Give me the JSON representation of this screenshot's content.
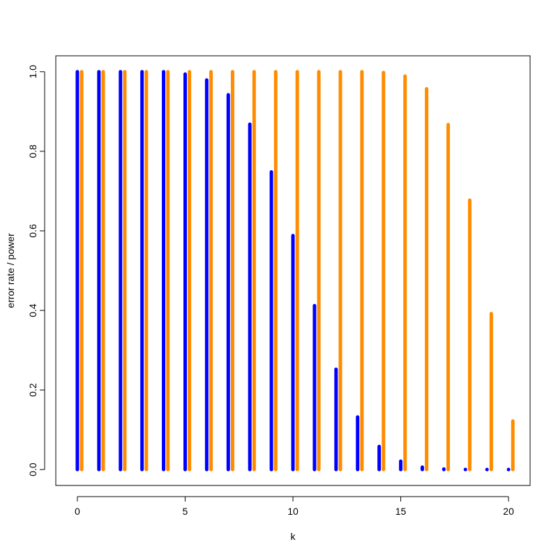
{
  "chart_data": {
    "type": "bar",
    "title": "",
    "xlabel": "k",
    "ylabel": "error rate / power",
    "xlim": [
      -1,
      21
    ],
    "ylim": [
      -0.04,
      1.04
    ],
    "x_ticks": [
      0,
      5,
      10,
      15,
      20
    ],
    "x_tick_labels": [
      "0",
      "5",
      "10",
      "15",
      "20"
    ],
    "y_ticks": [
      0.0,
      0.2,
      0.4,
      0.6,
      0.8,
      1.0
    ],
    "y_tick_labels": [
      "0.0",
      "0.2",
      "0.4",
      "0.6",
      "0.8",
      "1.0"
    ],
    "grid": false,
    "x": [
      0,
      1,
      2,
      3,
      4,
      5,
      6,
      7,
      8,
      9,
      10,
      11,
      12,
      13,
      14,
      15,
      16,
      17,
      18,
      19,
      20
    ],
    "series": [
      {
        "color": "#0000ff",
        "offset": 0,
        "values": [
          1.0,
          1.0,
          1.0,
          1.0,
          1.0,
          0.994,
          0.979,
          0.942,
          0.868,
          0.748,
          0.588,
          0.412,
          0.252,
          0.132,
          0.058,
          0.021,
          0.006,
          0.0013,
          0.0002,
          2e-05,
          1e-06
        ]
      },
      {
        "color": "#ff8c00",
        "offset": 0.2,
        "values": [
          1.0,
          1.0,
          1.0,
          1.0,
          1.0,
          1.0,
          1.0,
          1.0,
          1.0,
          1.0,
          1.0,
          1.0,
          1.0,
          1.0,
          0.998,
          0.989,
          0.957,
          0.867,
          0.677,
          0.392,
          0.122
        ]
      }
    ]
  }
}
